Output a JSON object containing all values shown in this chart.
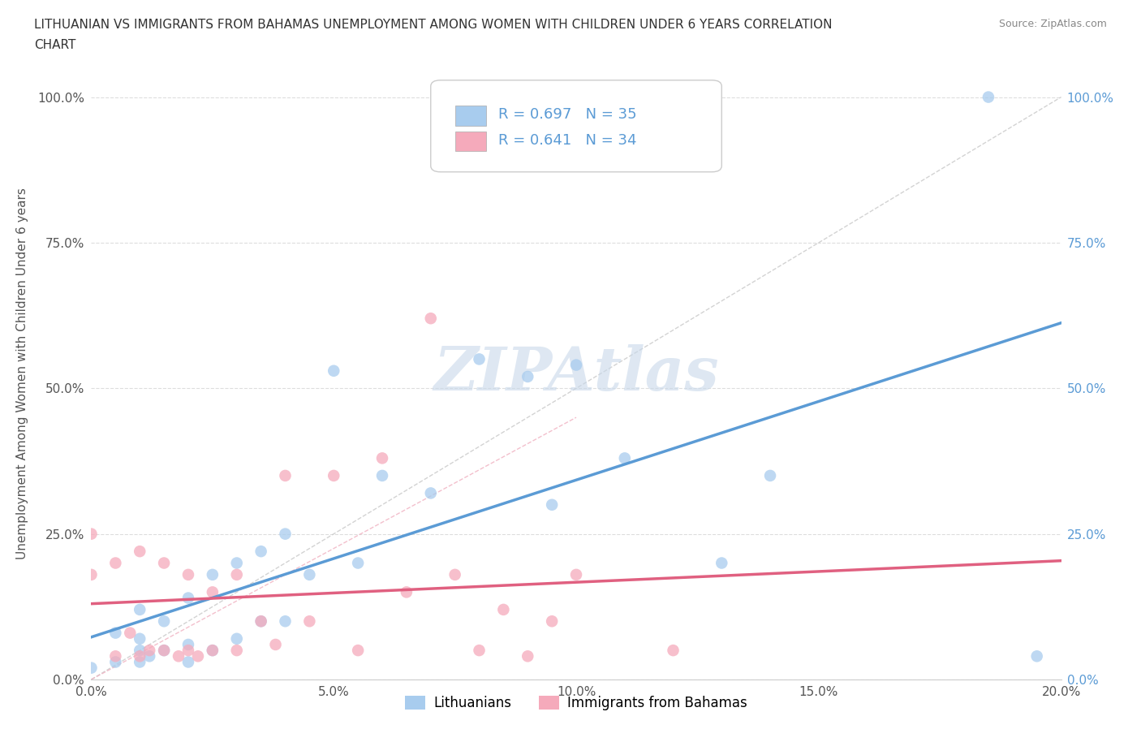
{
  "title": "LITHUANIAN VS IMMIGRANTS FROM BAHAMAS UNEMPLOYMENT AMONG WOMEN WITH CHILDREN UNDER 6 YEARS CORRELATION\nCHART",
  "source": "Source: ZipAtlas.com",
  "ylabel": "Unemployment Among Women with Children Under 6 years",
  "xlim": [
    0.0,
    0.2
  ],
  "ylim": [
    0.0,
    1.05
  ],
  "xticks": [
    0.0,
    0.05,
    0.1,
    0.15,
    0.2
  ],
  "xticklabels": [
    "0.0%",
    "5.0%",
    "10.0%",
    "15.0%",
    "20.0%"
  ],
  "yticks": [
    0.0,
    0.25,
    0.5,
    0.75,
    1.0
  ],
  "yticklabels": [
    "0.0%",
    "25.0%",
    "50.0%",
    "75.0%",
    "100.0%"
  ],
  "color_blue": "#A8CCEE",
  "color_pink": "#F5AABB",
  "line_blue": "#5B9BD5",
  "line_pink": "#E06080",
  "ref_gray": "#C8C8C8",
  "ref_pink": "#F0B0C0",
  "watermark_color": "#C8D8EA",
  "lithuanians_x": [
    0.0,
    0.005,
    0.005,
    0.01,
    0.01,
    0.01,
    0.01,
    0.012,
    0.015,
    0.015,
    0.02,
    0.02,
    0.02,
    0.025,
    0.025,
    0.03,
    0.03,
    0.035,
    0.035,
    0.04,
    0.04,
    0.045,
    0.05,
    0.055,
    0.06,
    0.07,
    0.08,
    0.09,
    0.095,
    0.1,
    0.11,
    0.13,
    0.14,
    0.185,
    0.195
  ],
  "lithuanians_y": [
    0.02,
    0.03,
    0.08,
    0.03,
    0.05,
    0.07,
    0.12,
    0.04,
    0.05,
    0.1,
    0.03,
    0.06,
    0.14,
    0.05,
    0.18,
    0.07,
    0.2,
    0.1,
    0.22,
    0.1,
    0.25,
    0.18,
    0.53,
    0.2,
    0.35,
    0.32,
    0.55,
    0.52,
    0.3,
    0.54,
    0.38,
    0.2,
    0.35,
    1.0,
    0.04
  ],
  "bahamas_x": [
    0.0,
    0.0,
    0.005,
    0.005,
    0.008,
    0.01,
    0.01,
    0.012,
    0.015,
    0.015,
    0.018,
    0.02,
    0.02,
    0.022,
    0.025,
    0.025,
    0.03,
    0.03,
    0.035,
    0.038,
    0.04,
    0.045,
    0.05,
    0.055,
    0.06,
    0.065,
    0.07,
    0.075,
    0.08,
    0.085,
    0.09,
    0.095,
    0.1,
    0.12
  ],
  "bahamas_y": [
    0.18,
    0.25,
    0.04,
    0.2,
    0.08,
    0.04,
    0.22,
    0.05,
    0.05,
    0.2,
    0.04,
    0.05,
    0.18,
    0.04,
    0.05,
    0.15,
    0.05,
    0.18,
    0.1,
    0.06,
    0.35,
    0.1,
    0.35,
    0.05,
    0.38,
    0.15,
    0.62,
    0.18,
    0.05,
    0.12,
    0.04,
    0.1,
    0.18,
    0.05
  ],
  "lith_reg": [
    0.0,
    0.855
  ],
  "bah_reg_slope": 0.7,
  "bah_reg_intercept": 0.02
}
